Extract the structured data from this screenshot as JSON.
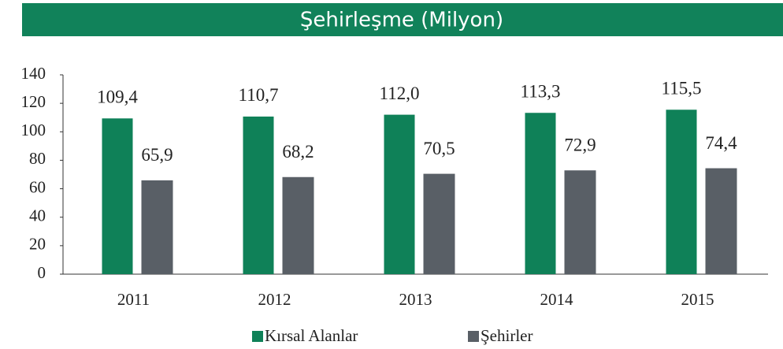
{
  "chart_data": {
    "type": "bar",
    "title": "Şehirleşme (Milyon)",
    "categories": [
      "2011",
      "2012",
      "2013",
      "2014",
      "2015"
    ],
    "series": [
      {
        "name": "Kırsal Alanlar",
        "color": "#0f8158",
        "values": [
          109.4,
          110.7,
          112.0,
          113.3,
          115.5
        ],
        "value_labels": [
          "109,4",
          "110,7",
          "112,0",
          "113,3",
          "115,5"
        ]
      },
      {
        "name": "Şehirler",
        "color": "#595f66",
        "values": [
          65.9,
          68.2,
          70.5,
          72.9,
          74.4
        ],
        "value_labels": [
          "65,9",
          "68,2",
          "70,5",
          "72,9",
          "74,4"
        ]
      }
    ],
    "ylim": [
      0,
      140
    ],
    "yticks": [
      0,
      20,
      40,
      60,
      80,
      100,
      120,
      140
    ],
    "value_label_color": "#b94a48",
    "banner_color": "#11825a",
    "legend": "bottom"
  }
}
